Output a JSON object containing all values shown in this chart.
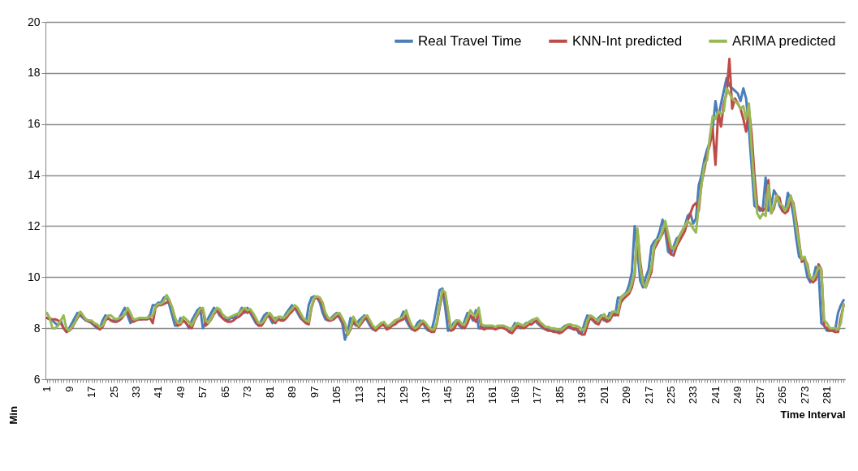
{
  "chart_data": {
    "type": "line",
    "xlabel": "Time Interval",
    "ylabel": "Min",
    "categories": [
      "1",
      null,
      null,
      null,
      null,
      null,
      null,
      null,
      "9",
      null,
      null,
      null,
      null,
      null,
      null,
      null,
      "17",
      null,
      null,
      null,
      null,
      null,
      null,
      null,
      "25",
      null,
      null,
      null,
      null,
      null,
      null,
      null,
      "33",
      null,
      null,
      null,
      null,
      null,
      null,
      null,
      "41",
      null,
      null,
      null,
      null,
      null,
      null,
      null,
      "49",
      null,
      null,
      null,
      null,
      null,
      null,
      null,
      "57",
      null,
      null,
      null,
      null,
      null,
      null,
      null,
      "65",
      null,
      null,
      null,
      null,
      null,
      null,
      null,
      "73",
      null,
      null,
      null,
      null,
      null,
      null,
      null,
      "81",
      null,
      null,
      null,
      null,
      null,
      null,
      null,
      "89",
      null,
      null,
      null,
      null,
      null,
      null,
      null,
      "97",
      null,
      null,
      null,
      null,
      null,
      null,
      null,
      "105",
      null,
      null,
      null,
      null,
      null,
      null,
      null,
      "113",
      null,
      null,
      null,
      null,
      null,
      null,
      null,
      "121",
      null,
      null,
      null,
      null,
      null,
      null,
      null,
      "129",
      null,
      null,
      null,
      null,
      null,
      null,
      null,
      "137",
      null,
      null,
      null,
      null,
      null,
      null,
      null,
      "145",
      null,
      null,
      null,
      null,
      null,
      null,
      null,
      "153",
      null,
      null,
      null,
      null,
      null,
      null,
      null,
      "161",
      null,
      null,
      null,
      null,
      null,
      null,
      null,
      "169",
      null,
      null,
      null,
      null,
      null,
      null,
      null,
      "177",
      null,
      null,
      null,
      null,
      null,
      null,
      null,
      "185",
      null,
      null,
      null,
      null,
      null,
      null,
      null,
      "193",
      null,
      null,
      null,
      null,
      null,
      null,
      null,
      "201",
      null,
      null,
      null,
      null,
      null,
      null,
      null,
      "209",
      null,
      null,
      null,
      null,
      null,
      null,
      null,
      "217",
      null,
      null,
      null,
      null,
      null,
      null,
      null,
      "225",
      null,
      null,
      null,
      null,
      null,
      null,
      null,
      "233",
      null,
      null,
      null,
      null,
      null,
      null,
      null,
      "241",
      null,
      null,
      null,
      null,
      null,
      null,
      null,
      "249",
      null,
      null,
      null,
      null,
      null,
      null,
      null,
      "257",
      null,
      null,
      null,
      null,
      null,
      null,
      null,
      "265",
      null,
      null,
      null,
      null,
      null,
      null,
      null,
      "273",
      null,
      null,
      null,
      null,
      null,
      null,
      null,
      "281",
      null,
      null,
      null,
      null,
      null,
      null
    ],
    "series": [
      {
        "name": "Real Travel Time",
        "color": "#4a7ebb",
        "values": [
          8.4,
          8.4,
          8.3,
          8.2,
          8.1,
          8.3,
          8.0,
          7.9,
          8.0,
          8.2,
          8.4,
          8.6,
          8.5,
          8.4,
          8.3,
          8.3,
          8.2,
          8.1,
          8.0,
          8.0,
          8.3,
          8.5,
          8.4,
          8.3,
          8.3,
          8.3,
          8.4,
          8.6,
          8.8,
          8.5,
          8.2,
          8.3,
          8.35,
          8.35,
          8.35,
          8.4,
          8.4,
          8.5,
          8.9,
          8.9,
          9.0,
          9.0,
          9.2,
          9.25,
          8.9,
          8.5,
          8.1,
          8.1,
          8.4,
          8.3,
          8.2,
          8.0,
          8.3,
          8.5,
          8.7,
          8.8,
          8.0,
          8.2,
          8.4,
          8.6,
          8.8,
          8.7,
          8.5,
          8.4,
          8.35,
          8.3,
          8.4,
          8.4,
          8.5,
          8.6,
          8.8,
          8.6,
          8.8,
          8.6,
          8.4,
          8.2,
          8.1,
          8.3,
          8.5,
          8.6,
          8.4,
          8.2,
          8.4,
          8.4,
          8.3,
          8.4,
          8.6,
          8.75,
          8.9,
          8.8,
          8.6,
          8.4,
          8.3,
          8.2,
          8.9,
          9.2,
          9.25,
          9.2,
          9.0,
          8.6,
          8.35,
          8.3,
          8.4,
          8.5,
          8.6,
          8.4,
          8.2,
          7.55,
          7.9,
          8.4,
          8.2,
          8.1,
          8.3,
          8.4,
          8.5,
          8.3,
          8.1,
          7.95,
          8.0,
          8.1,
          8.2,
          8.1,
          8.0,
          8.1,
          8.2,
          8.3,
          8.3,
          8.4,
          8.65,
          8.3,
          8.1,
          7.95,
          8.0,
          8.2,
          8.3,
          8.2,
          8.0,
          7.9,
          7.9,
          8.3,
          8.9,
          9.5,
          9.55,
          8.8,
          7.9,
          8.0,
          8.2,
          8.3,
          8.1,
          8.0,
          8.3,
          8.6,
          8.5,
          8.3,
          8.7,
          8.0,
          8.0,
          8.05,
          8.05,
          8.05,
          8.0,
          8.05,
          8.1,
          8.05,
          8.0,
          7.95,
          7.85,
          8.0,
          8.2,
          8.1,
          8.0,
          8.1,
          8.2,
          8.2,
          8.3,
          8.35,
          8.2,
          8.1,
          8.0,
          7.95,
          7.95,
          7.9,
          7.9,
          7.85,
          7.9,
          8.0,
          8.1,
          8.1,
          8.0,
          8.0,
          8.0,
          7.8,
          7.8,
          8.2,
          8.5,
          8.4,
          8.3,
          8.2,
          8.4,
          8.5,
          8.3,
          8.3,
          8.6,
          8.6,
          8.5,
          9.2,
          9.2,
          9.3,
          9.4,
          9.7,
          10.2,
          12.0,
          11.0,
          9.85,
          9.6,
          10.0,
          10.3,
          11.2,
          11.4,
          11.5,
          11.8,
          12.25,
          11.8,
          11.0,
          10.9,
          11.2,
          11.5,
          11.6,
          11.8,
          12.0,
          12.4,
          12.5,
          12.1,
          12.3,
          13.6,
          14.0,
          14.6,
          15.0,
          15.3,
          15.8,
          16.9,
          16.2,
          16.8,
          17.3,
          17.8,
          17.5,
          17.4,
          17.3,
          17.2,
          16.9,
          17.4,
          17.0,
          15.8,
          14.3,
          12.8,
          12.7,
          12.6,
          12.7,
          13.9,
          12.6,
          12.8,
          13.4,
          13.2,
          12.8,
          12.6,
          12.6,
          13.3,
          13.0,
          12.4,
          11.5,
          10.8,
          10.7,
          10.6,
          10.0,
          9.8,
          9.9,
          10.4,
          10.3,
          8.2,
          8.1,
          7.9,
          7.9,
          7.95,
          7.95,
          8.6,
          8.9,
          9.1
        ]
      },
      {
        "name": "KNN-Int predicted",
        "color": "#be4b48",
        "values": [
          8.4,
          8.35,
          8.35,
          8.35,
          8.3,
          8.2,
          8.0,
          7.85,
          7.9,
          8.0,
          8.2,
          8.4,
          8.55,
          8.45,
          8.35,
          8.25,
          8.25,
          8.15,
          8.05,
          7.95,
          8.05,
          8.3,
          8.4,
          8.3,
          8.25,
          8.25,
          8.3,
          8.4,
          8.55,
          8.7,
          8.4,
          8.25,
          8.3,
          8.35,
          8.35,
          8.35,
          8.35,
          8.4,
          8.2,
          8.8,
          8.9,
          8.9,
          8.95,
          9.0,
          9.05,
          8.8,
          8.4,
          8.1,
          8.15,
          8.3,
          8.2,
          8.05,
          8.0,
          8.3,
          8.5,
          8.7,
          8.75,
          8.1,
          8.2,
          8.35,
          8.55,
          8.7,
          8.6,
          8.4,
          8.3,
          8.25,
          8.25,
          8.3,
          8.4,
          8.45,
          8.55,
          8.7,
          8.6,
          8.7,
          8.5,
          8.3,
          8.1,
          8.1,
          8.25,
          8.45,
          8.5,
          8.3,
          8.2,
          8.35,
          8.3,
          8.3,
          8.4,
          8.55,
          8.65,
          8.8,
          8.7,
          8.5,
          8.3,
          8.2,
          8.15,
          8.8,
          9.15,
          9.2,
          9.1,
          8.9,
          8.5,
          8.3,
          8.3,
          8.35,
          8.45,
          8.5,
          8.3,
          8.05,
          7.75,
          7.95,
          8.3,
          8.15,
          8.05,
          8.2,
          8.35,
          8.4,
          8.2,
          8.0,
          7.9,
          8.0,
          8.1,
          8.15,
          7.95,
          8.0,
          8.1,
          8.15,
          8.25,
          8.3,
          8.35,
          8.5,
          8.2,
          8.0,
          7.9,
          7.95,
          8.1,
          8.2,
          8.1,
          7.95,
          7.85,
          7.85,
          8.2,
          8.8,
          9.4,
          9.3,
          8.6,
          7.9,
          7.95,
          8.15,
          8.2,
          8.05,
          8.0,
          8.2,
          8.5,
          8.4,
          8.25,
          8.6,
          8.0,
          7.95,
          8.0,
          8.0,
          8.0,
          7.95,
          8.0,
          8.05,
          8.0,
          7.95,
          7.85,
          7.8,
          7.95,
          8.1,
          8.05,
          8.0,
          8.05,
          8.15,
          8.15,
          8.25,
          8.3,
          8.15,
          8.05,
          7.95,
          7.9,
          7.9,
          7.85,
          7.85,
          7.8,
          7.85,
          7.95,
          8.05,
          8.05,
          7.95,
          7.95,
          7.9,
          7.75,
          7.75,
          8.1,
          8.4,
          8.35,
          8.2,
          8.15,
          8.35,
          8.4,
          8.25,
          8.3,
          8.5,
          8.55,
          8.5,
          9.0,
          9.15,
          9.25,
          9.35,
          9.6,
          10.1,
          11.8,
          10.6,
          9.8,
          9.6,
          9.9,
          10.2,
          11.1,
          11.3,
          11.5,
          11.7,
          12.1,
          11.4,
          10.9,
          10.85,
          11.2,
          11.4,
          11.6,
          11.8,
          12.2,
          12.5,
          12.8,
          12.9,
          12.6,
          13.7,
          14.2,
          14.8,
          15.2,
          15.8,
          14.4,
          16.5,
          15.9,
          16.8,
          17.2,
          18.55,
          16.6,
          17.0,
          16.8,
          16.6,
          16.2,
          15.7,
          16.6,
          15.6,
          14.0,
          12.8,
          12.7,
          12.6,
          12.7,
          13.8,
          12.5,
          12.7,
          13.2,
          13.1,
          12.6,
          12.5,
          12.6,
          13.1,
          12.9,
          12.2,
          11.4,
          10.6,
          10.7,
          10.5,
          9.9,
          9.8,
          9.9,
          10.5,
          10.3,
          8.1,
          8.0,
          7.9,
          7.9,
          7.85,
          7.85,
          8.4,
          8.9
        ]
      },
      {
        "name": "ARIMA predicted",
        "color": "#98b954",
        "values": [
          8.6,
          8.4,
          8.0,
          8.0,
          8.1,
          8.3,
          8.5,
          8.0,
          7.9,
          8.05,
          8.2,
          8.45,
          8.65,
          8.5,
          8.35,
          8.3,
          8.3,
          8.2,
          8.15,
          8.05,
          8.1,
          8.35,
          8.5,
          8.5,
          8.4,
          8.35,
          8.4,
          8.45,
          8.55,
          8.8,
          8.6,
          8.35,
          8.35,
          8.4,
          8.4,
          8.4,
          8.4,
          8.45,
          8.5,
          8.85,
          8.95,
          8.95,
          9.05,
          9.3,
          9.1,
          8.8,
          8.4,
          8.2,
          8.2,
          8.45,
          8.35,
          8.25,
          8.1,
          8.35,
          8.55,
          8.75,
          8.8,
          8.3,
          8.2,
          8.4,
          8.6,
          8.8,
          8.75,
          8.55,
          8.45,
          8.4,
          8.45,
          8.5,
          8.55,
          8.6,
          8.7,
          8.8,
          8.7,
          8.75,
          8.6,
          8.4,
          8.2,
          8.2,
          8.3,
          8.5,
          8.6,
          8.45,
          8.3,
          8.45,
          8.45,
          8.4,
          8.5,
          8.65,
          8.75,
          8.9,
          8.8,
          8.6,
          8.4,
          8.3,
          8.25,
          8.85,
          9.2,
          9.25,
          9.2,
          9.0,
          8.6,
          8.4,
          8.35,
          8.45,
          8.55,
          8.6,
          8.4,
          8.2,
          7.75,
          8.0,
          8.45,
          8.25,
          8.1,
          8.3,
          8.45,
          8.5,
          8.3,
          8.1,
          8.0,
          8.1,
          8.2,
          8.25,
          8.1,
          8.1,
          8.2,
          8.3,
          8.35,
          8.4,
          8.45,
          8.7,
          8.35,
          8.1,
          8.0,
          8.05,
          8.2,
          8.3,
          8.2,
          8.05,
          7.95,
          7.95,
          8.25,
          8.9,
          9.5,
          9.4,
          8.7,
          8.0,
          8.1,
          8.3,
          8.3,
          8.15,
          8.15,
          8.4,
          8.7,
          8.55,
          8.45,
          8.8,
          8.15,
          8.1,
          8.1,
          8.1,
          8.1,
          8.05,
          8.1,
          8.1,
          8.1,
          8.05,
          8.0,
          7.95,
          8.1,
          8.2,
          8.15,
          8.1,
          8.15,
          8.25,
          8.3,
          8.35,
          8.4,
          8.25,
          8.15,
          8.05,
          8.05,
          8.0,
          8.0,
          7.95,
          7.95,
          7.95,
          8.05,
          8.15,
          8.15,
          8.1,
          8.1,
          8.05,
          7.95,
          7.95,
          8.3,
          8.5,
          8.45,
          8.35,
          8.3,
          8.45,
          8.55,
          8.4,
          8.4,
          8.65,
          8.65,
          8.6,
          9.2,
          9.3,
          9.35,
          9.45,
          9.75,
          10.2,
          11.9,
          10.4,
          9.75,
          9.6,
          10.0,
          10.4,
          11.2,
          11.45,
          11.5,
          11.8,
          12.2,
          11.7,
          11.2,
          11.1,
          11.3,
          11.6,
          11.8,
          12.0,
          12.2,
          12.1,
          11.9,
          11.75,
          12.8,
          13.6,
          14.4,
          14.6,
          15.5,
          16.3,
          16.2,
          16.5,
          16.4,
          16.5,
          17.4,
          17.2,
          17.0,
          16.9,
          16.8,
          16.6,
          16.7,
          16.2,
          16.8,
          15.0,
          13.5,
          12.5,
          12.3,
          12.5,
          12.4,
          13.6,
          12.5,
          12.8,
          13.2,
          12.9,
          12.8,
          12.6,
          12.8,
          13.2,
          12.8,
          12.0,
          11.3,
          10.7,
          10.8,
          10.4,
          10.0,
          9.9,
          10.1,
          10.4,
          10.3,
          8.3,
          8.2,
          8.0,
          8.0,
          8.0,
          7.95,
          8.2,
          8.95
        ]
      }
    ],
    "ylim": [
      6,
      20
    ],
    "yticks": [
      6,
      8,
      10,
      12,
      14,
      16,
      18,
      20
    ],
    "grid": "y",
    "legend": "top right",
    "line_style": "solid"
  }
}
